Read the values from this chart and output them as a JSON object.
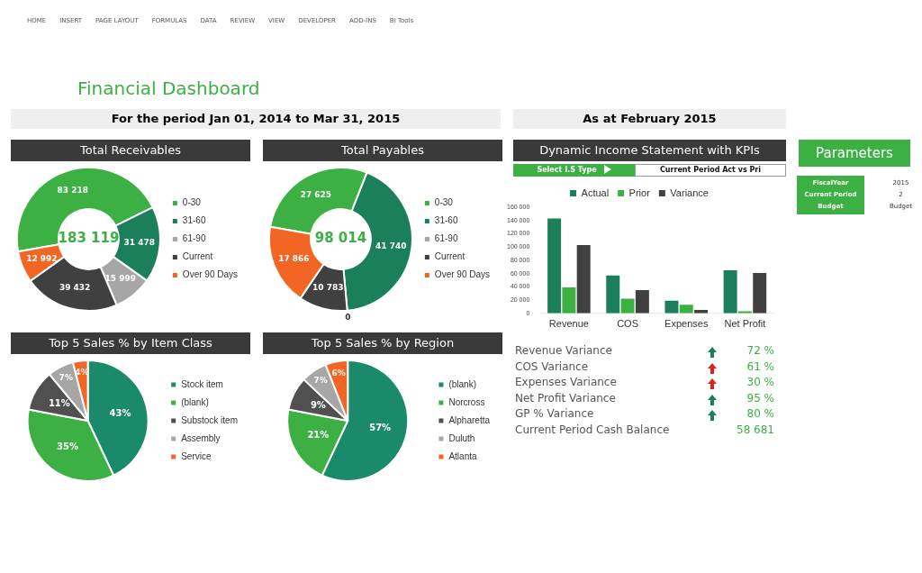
{
  "chart_data": [
    {
      "type": "other",
      "annotations": [
        "HOME",
        "INSERT",
        "PAGE LAYOUT",
        "FORMULAS",
        "DATA",
        "REVIEW",
        "VIEW",
        "DEVELOPER",
        "ADD-INS",
        "BI Tools"
      ]
    },
    {
      "type": "other",
      "title": "Financial Dashboard"
    },
    {
      "type": "other",
      "title": "For the period Jan 01, 2014 to Mar 31, 2015"
    },
    {
      "type": "other",
      "title": "As at February 2015"
    },
    {
      "type": "donut",
      "title": "Total Receivables",
      "categories": [
        "0-30",
        "31-60",
        "61-90",
        "Current",
        "Over 90 Days"
      ],
      "values": [
        83218,
        31478,
        15999,
        39432,
        12992
      ],
      "value_labels": [
        "83 218",
        "31 478",
        "15 999",
        "39 432",
        "12 992"
      ],
      "colors": [
        "#3cb043",
        "#1a7f5a",
        "#a6a6a6",
        "#404040",
        "#f26522"
      ],
      "legend": "right",
      "annotations": [
        "183 119"
      ]
    },
    {
      "type": "donut",
      "title": "Total Payables",
      "categories": [
        "0-30",
        "31-60",
        "61-90",
        "Current",
        "Over 90 Days"
      ],
      "values": [
        27625,
        41740,
        0,
        10783,
        17866
      ],
      "value_labels": [
        "27 625",
        "41 740",
        "0",
        "10 783",
        "17 866"
      ],
      "colors": [
        "#3cb043",
        "#1a7f5a",
        "#a6a6a6",
        "#404040",
        "#f26522"
      ],
      "legend": "right",
      "annotations": [
        "98 014"
      ]
    },
    {
      "type": "bar",
      "title": "Dynamic Income Statement with KPIs",
      "categories": [
        "Revenue",
        "COS",
        "Expenses",
        "Net Profit"
      ],
      "series": [
        {
          "name": "Actual",
          "color": "#1a7f5a",
          "values": [
            143000,
            57000,
            19000,
            65000
          ]
        },
        {
          "name": "Prior",
          "color": "#3cb043",
          "values": [
            39000,
            22000,
            13000,
            3000
          ]
        },
        {
          "name": "Variance",
          "color": "#404040",
          "values": [
            103000,
            35000,
            5000,
            61000
          ]
        }
      ],
      "ylim": [
        0,
        160000
      ],
      "yticks": [
        {
          "value": 0,
          "label": "0"
        },
        {
          "value": 20000,
          "label": "20 000"
        },
        {
          "value": 40000,
          "label": "40 000"
        },
        {
          "value": 60000,
          "label": "60 000"
        },
        {
          "value": 80000,
          "label": "80 000"
        },
        {
          "value": 100000,
          "label": "100 000"
        },
        {
          "value": 120000,
          "label": "120 000"
        },
        {
          "value": 140000,
          "label": "140 000"
        },
        {
          "value": 160000,
          "label": "160 000"
        }
      ],
      "legend": "top",
      "annotations": [
        "Select I.S Type",
        "Current Period Act vs Pri"
      ]
    },
    {
      "type": "other",
      "title": "Parameters",
      "annotations": [
        "FiscalYear",
        "Current Period",
        "Budget",
        "2015",
        "2",
        "Budget"
      ]
    },
    {
      "type": "pie",
      "title": "Top 5 Sales % by Item Class",
      "categories": [
        "Stock item",
        "(blank)",
        "Substock item",
        "Assembly",
        "Service"
      ],
      "values": [
        43,
        35,
        11,
        7,
        4
      ],
      "value_labels": [
        "43%",
        "35%",
        "11%",
        "7%",
        "4%"
      ],
      "colors": [
        "#1a8a6a",
        "#3cb043",
        "#505050",
        "#a6a6a6",
        "#f26522"
      ],
      "legend": "right"
    },
    {
      "type": "pie",
      "title": "Top 5 Sales % by Region",
      "categories": [
        "(blank)",
        "Norcross",
        "Alpharetta",
        "Duluth",
        "Atlanta"
      ],
      "values": [
        57,
        21,
        9,
        7,
        6
      ],
      "value_labels": [
        "57%",
        "21%",
        "9%",
        "7%",
        "6%"
      ],
      "colors": [
        "#1a8a6a",
        "#3cb043",
        "#505050",
        "#a6a6a6",
        "#f26522"
      ],
      "legend": "right"
    },
    {
      "type": "other",
      "annotations": [
        "Revenue Variance",
        "72 %",
        "COS Variance",
        "61 %",
        "Expenses Variance",
        "30 %",
        "Net Profit Variance",
        "95 %",
        "GP % Variance",
        "80 %",
        "Current Period Cash Balance",
        "58 681"
      ]
    }
  ]
}
